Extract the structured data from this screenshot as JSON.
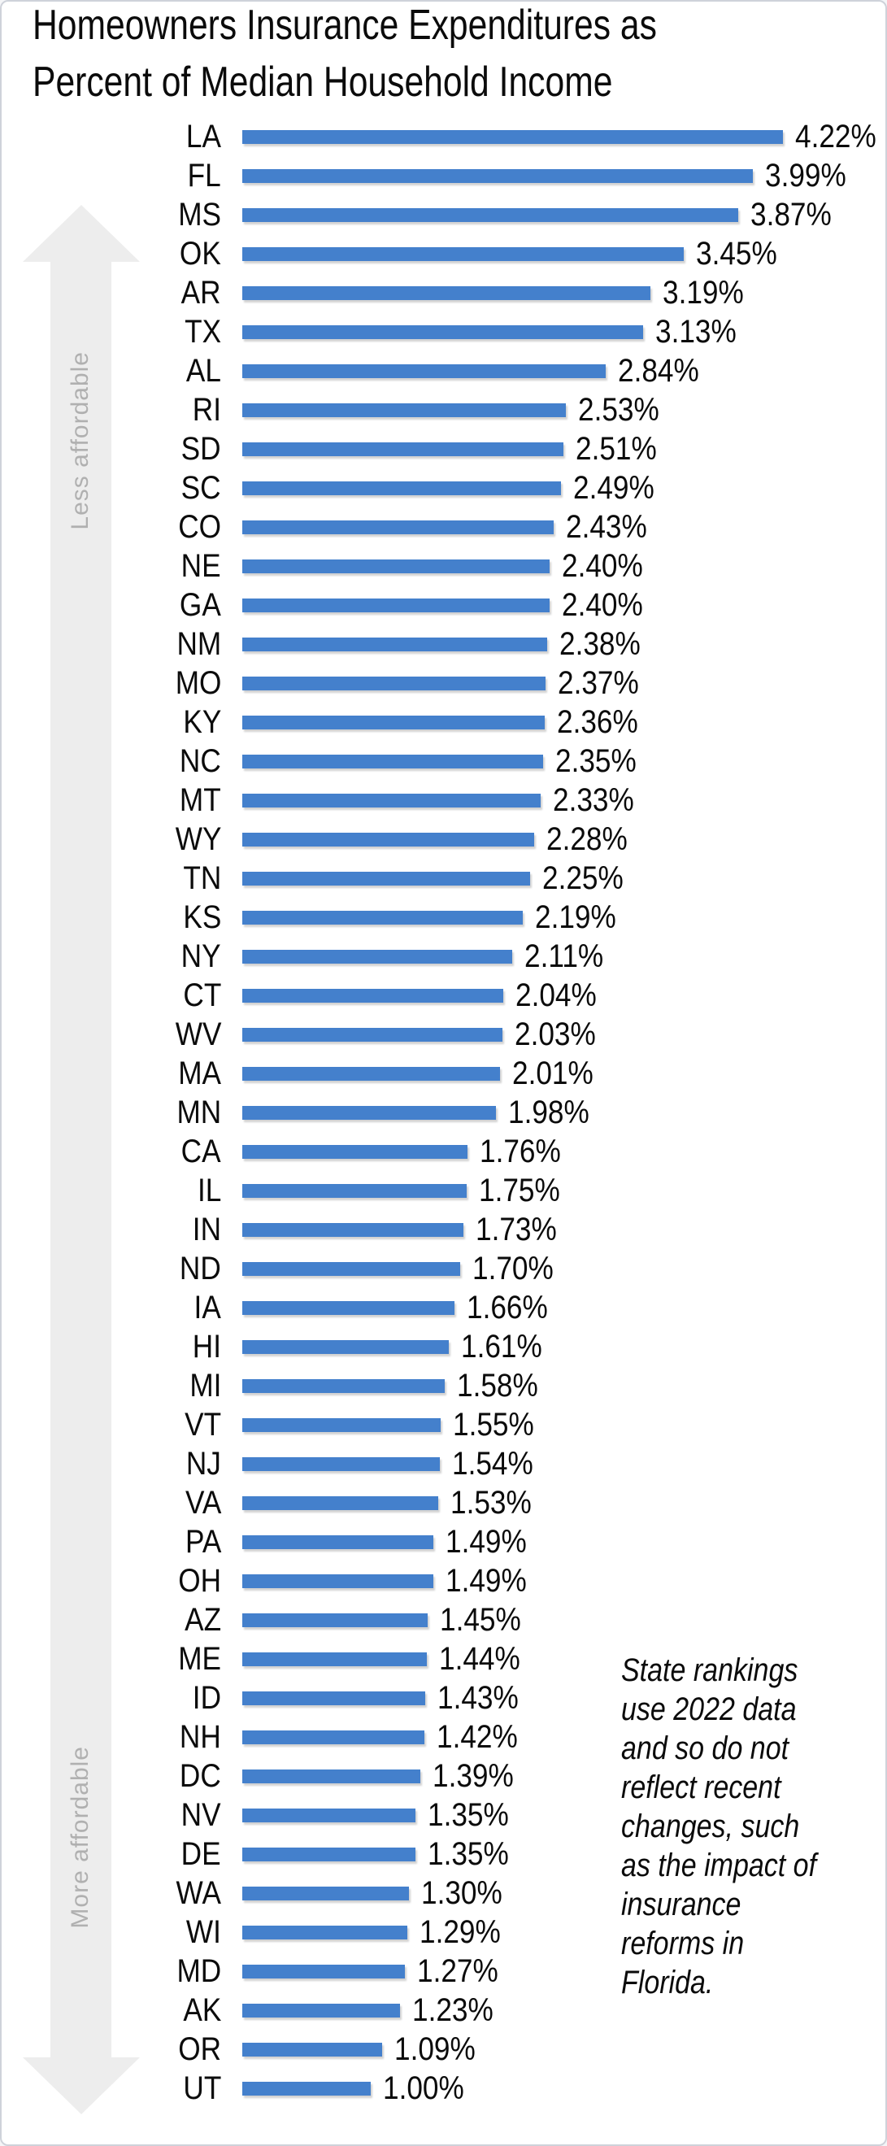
{
  "title": {
    "line1": "Homeowners Insurance Expenditures as",
    "line2": "Percent of Median Household Income"
  },
  "axis": {
    "less_label": "Less affordable",
    "more_label": "More affordable"
  },
  "annotation": {
    "text": "State rankings use 2022 data and so do not reflect recent changes, such as the impact of insurance reforms in Florida.",
    "lines": [
      "State rankings",
      "use 2022 data",
      "and so do not",
      "reflect recent",
      "changes, such",
      "as the impact of",
      "insurance",
      "reforms in",
      "Florida."
    ]
  },
  "colors": {
    "bar": "#4480CC",
    "arrow": "#ededed",
    "arrow_label": "#b0b0b0",
    "text": "#0b0b0b"
  },
  "chart_data": {
    "type": "bar",
    "orientation": "horizontal",
    "title": "Homeowners Insurance Expenditures as Percent of Median Household Income",
    "xlabel": "",
    "ylabel": "",
    "xlim": [
      0,
      4.5
    ],
    "grid": false,
    "legend": false,
    "value_format": "0.00%",
    "categories": [
      "LA",
      "FL",
      "MS",
      "OK",
      "AR",
      "TX",
      "AL",
      "RI",
      "SD",
      "SC",
      "CO",
      "NE",
      "GA",
      "NM",
      "MO",
      "KY",
      "NC",
      "MT",
      "WY",
      "TN",
      "KS",
      "NY",
      "CT",
      "WV",
      "MA",
      "MN",
      "CA",
      "IL",
      "IN",
      "ND",
      "IA",
      "HI",
      "MI",
      "VT",
      "NJ",
      "VA",
      "PA",
      "OH",
      "AZ",
      "ME",
      "ID",
      "NH",
      "DC",
      "NV",
      "DE",
      "WA",
      "WI",
      "MD",
      "AK",
      "OR",
      "UT"
    ],
    "values": [
      4.22,
      3.99,
      3.87,
      3.45,
      3.19,
      3.13,
      2.84,
      2.53,
      2.51,
      2.49,
      2.43,
      2.4,
      2.4,
      2.38,
      2.37,
      2.36,
      2.35,
      2.33,
      2.28,
      2.25,
      2.19,
      2.11,
      2.04,
      2.03,
      2.01,
      1.98,
      1.76,
      1.75,
      1.73,
      1.7,
      1.66,
      1.61,
      1.58,
      1.55,
      1.54,
      1.53,
      1.49,
      1.49,
      1.45,
      1.44,
      1.43,
      1.42,
      1.39,
      1.35,
      1.35,
      1.3,
      1.29,
      1.27,
      1.23,
      1.09,
      1.0
    ]
  }
}
